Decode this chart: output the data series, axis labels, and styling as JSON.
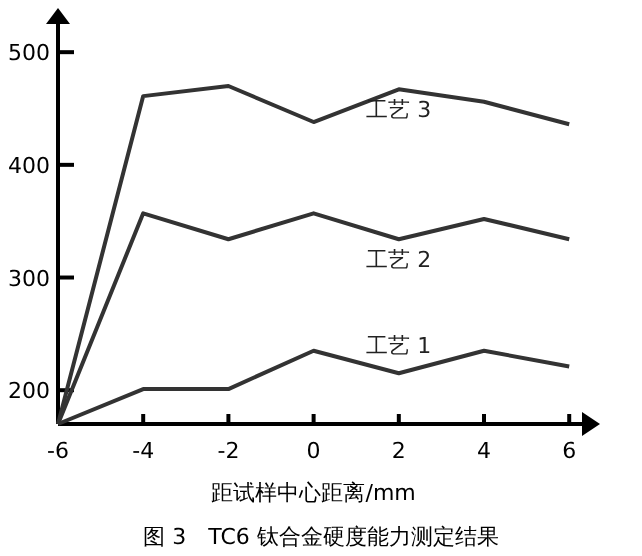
{
  "chart_data": {
    "type": "line",
    "title": "图 3　TC6 钛合金硬度能力测定结果",
    "xlabel": "距试样中心距离/mm",
    "x": [
      -6,
      -4,
      -2,
      0,
      2,
      4,
      6
    ],
    "series": [
      {
        "name": "工艺 3",
        "color": "#333333",
        "values": [
          170,
          461,
          470,
          438,
          467,
          456,
          436
        ]
      },
      {
        "name": "工艺 2",
        "color": "#333333",
        "values": [
          170,
          357,
          334,
          357,
          334,
          352,
          334
        ]
      },
      {
        "name": "工艺 1",
        "color": "#333333",
        "values": [
          170,
          201,
          201,
          235,
          215,
          235,
          221
        ]
      }
    ],
    "xlim": [
      -6,
      6.3
    ],
    "ylim": [
      170,
      525
    ],
    "xticks": [
      -6,
      -4,
      -2,
      0,
      2,
      4,
      6
    ],
    "yticks": [
      200,
      300,
      400,
      500
    ],
    "grid": false,
    "marker": "none",
    "line_style": "solid"
  }
}
